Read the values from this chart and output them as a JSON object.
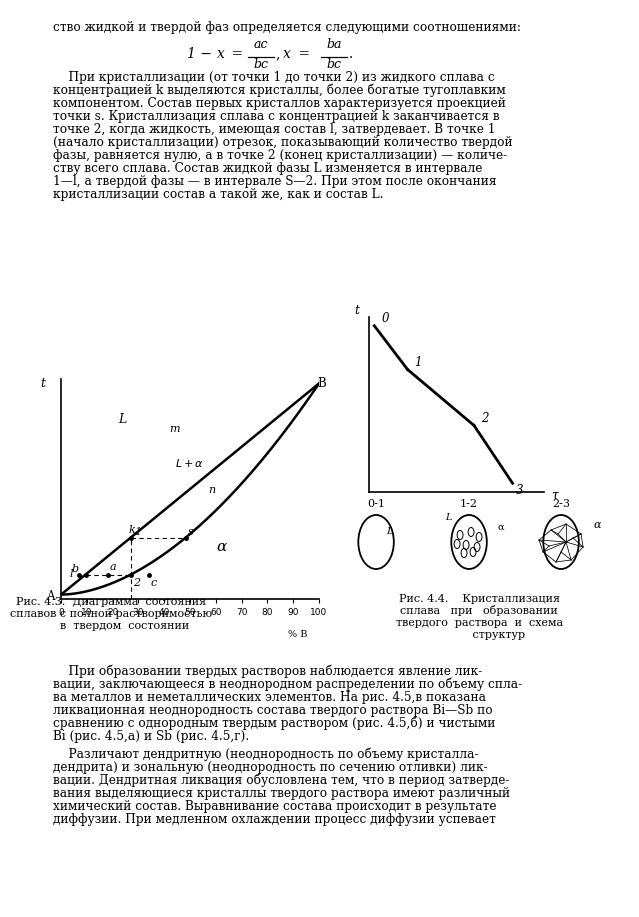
{
  "bg_color": "#ffffff",
  "text_color": "#000000",
  "lh": 13.0,
  "top_line": "ство жидкой и твердой фаз определяется следующими соотношениями:",
  "para1_lines": [
    "    При кристаллизации (от точки 1 до точки 2) из жидкого сплава с",
    "концентрацией k выделяются кристаллы, более богатые тугоплавким",
    "компонентом. Состав первых кристаллов характеризуется проекцией",
    "точки s. Кристаллизация сплава с концентрацией k заканчивается в",
    "точке 2, когда жидкость, имеющая состав l, затвердевает. В точке 1",
    "(начало кристаллизации) отрезок, показывающий количество твердой",
    "фазы, равняется нулю, а в точке 2 (конец кристаллизации) — количе-",
    "ству всего сплава. Состав жидкой фазы L изменяется в интервале",
    "1—l, а твердой фазы — в интервале S—2. При этом после окончания",
    "кристаллизации состав a такой же, как и состав L."
  ],
  "para2_lines": [
    "    При образовании твердых растворов наблюдается явление лик-",
    "вации, заключающееся в неоднородном распределении по объему спла-",
    "ва металлов и неметаллических элементов. На рис. 4.5,в показана",
    "ликвационная неоднородность состава твердого раствора Bi—Sb по",
    "сравнению с однородным твердым раствором (рис. 4.5,б) и чистыми",
    "Bi (рис. 4.5,а) и Sb (рис. 4.5,г)."
  ],
  "para3_lines": [
    "    Различают дендритную (неоднородность по объему кристалла-",
    "дендрита) и зональную (неоднородность по сечению отливки) лик-",
    "вации. Дендритная ликвация обусловлена тем, что в период затверде-",
    "вания выделяющиеся кристаллы твердого раствора имеют различный",
    "химический состав. Выравнивание состава происходит в результате",
    "диффузии. При медленном охлаждении процесс диффузии успевает"
  ],
  "caption1_lines": [
    "Рис. 4.3.  Диаграмма  состояния",
    "сплавов с полной растворимостью",
    "        в  твердом  состоянии"
  ],
  "caption2_lines": [
    "Рис. 4.4.    Кристаллизация",
    "сплава   при   образовании",
    "твердого  раствора  и  схема",
    "           структур"
  ]
}
